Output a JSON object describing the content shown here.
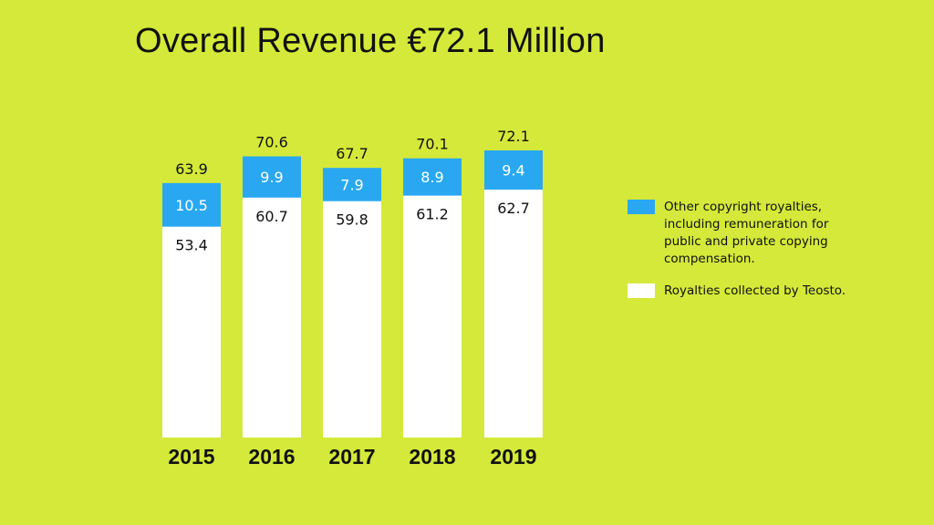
{
  "chart_data": {
    "type": "bar",
    "stacked": true,
    "title": "Overall Revenue €72.1 Million",
    "categories": [
      "2015",
      "2016",
      "2017",
      "2018",
      "2019"
    ],
    "series": [
      {
        "name": "Royalties collected by Teosto.",
        "values": [
          53.4,
          60.7,
          59.8,
          61.2,
          62.7
        ],
        "color": "#ffffff"
      },
      {
        "name": "Other copyright royalties, including remuneration for public and private copying compensation.",
        "values": [
          10.5,
          9.9,
          7.9,
          8.9,
          9.4
        ],
        "color": "#29a8f1"
      }
    ],
    "totals": [
      63.9,
      70.6,
      67.7,
      70.1,
      72.1
    ],
    "value_labels": {
      "Royalties collected by Teosto.": [
        "53.4",
        "60.7",
        "59.8",
        "61.2",
        "62.7"
      ],
      "Other copyright royalties, including remuneration for public and private copying compensation.": [
        "10.5",
        "9.9",
        "7.9",
        "8.9",
        "9.4"
      ],
      "totals": [
        "63.9",
        "70.6",
        "67.7",
        "70.1",
        "72.1"
      ]
    },
    "ylim": [
      0,
      72.1
    ],
    "grid": false,
    "legend_position": "right"
  },
  "colors": {
    "background": "#d4e939",
    "bar_other": "#29a8f1",
    "bar_teosto": "#ffffff",
    "text": "#111111"
  }
}
